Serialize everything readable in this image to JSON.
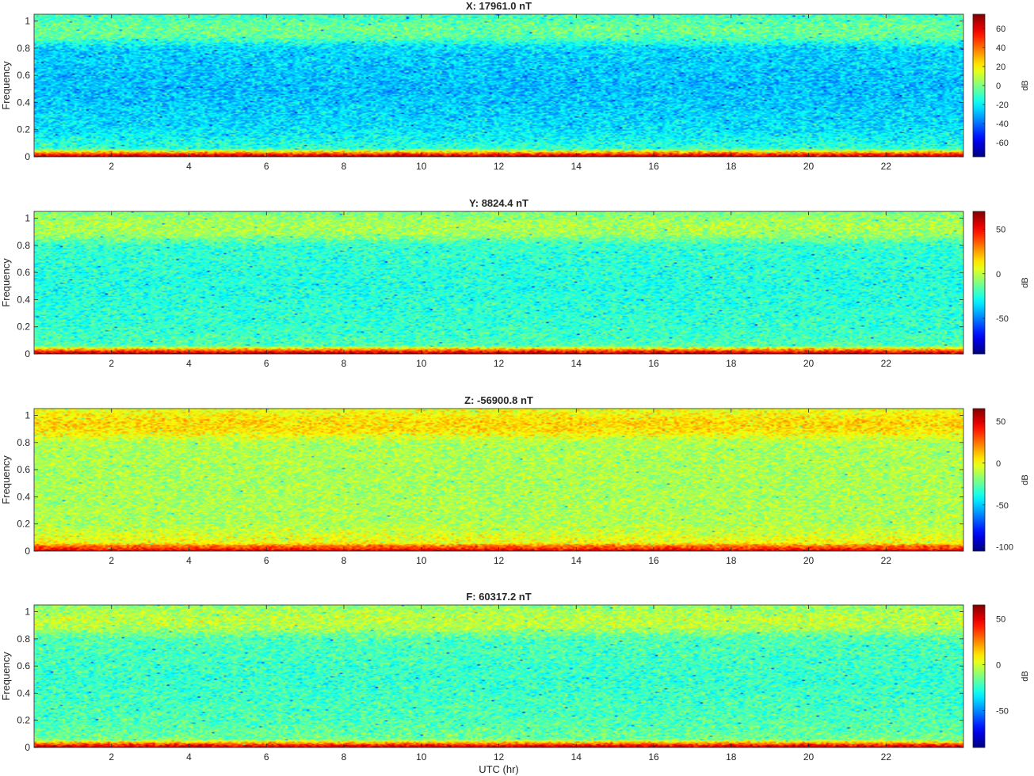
{
  "chart_data": [
    {
      "type": "heatmap",
      "title": "X: 17961.0 nT",
      "xlabel": "",
      "ylabel": "Frequency",
      "xlim": [
        0,
        24
      ],
      "ylim": [
        0,
        1.05
      ],
      "xticks": [
        2,
        4,
        6,
        8,
        10,
        12,
        14,
        16,
        18,
        20,
        22
      ],
      "yticks": [
        0,
        0.2,
        0.4,
        0.6,
        0.8,
        1
      ],
      "colorbar": {
        "label": "dB",
        "clim": [
          -75,
          75
        ],
        "ticks": [
          -60,
          -40,
          -20,
          0,
          20,
          40,
          60
        ]
      },
      "profile": [
        {
          "frequency": 0.0,
          "db": 72
        },
        {
          "frequency": 0.02,
          "db": 50
        },
        {
          "frequency": 0.04,
          "db": 20
        },
        {
          "frequency": 0.06,
          "db": -12
        },
        {
          "frequency": 0.2,
          "db": -22
        },
        {
          "frequency": 0.5,
          "db": -28
        },
        {
          "frequency": 0.8,
          "db": -24
        },
        {
          "frequency": 0.88,
          "db": -5
        },
        {
          "frequency": 0.95,
          "db": -2
        },
        {
          "frequency": 1.05,
          "db": -10
        }
      ]
    },
    {
      "type": "heatmap",
      "title": "Y: 8824.4 nT",
      "xlabel": "",
      "ylabel": "Frequency",
      "xlim": [
        0,
        24
      ],
      "ylim": [
        0,
        1.05
      ],
      "xticks": [
        2,
        4,
        6,
        8,
        10,
        12,
        14,
        16,
        18,
        20,
        22
      ],
      "yticks": [
        0,
        0.2,
        0.4,
        0.6,
        0.8,
        1
      ],
      "colorbar": {
        "label": "dB",
        "clim": [
          -90,
          70
        ],
        "ticks": [
          -50,
          0,
          50
        ]
      },
      "profile": [
        {
          "frequency": 0.0,
          "db": 65
        },
        {
          "frequency": 0.02,
          "db": 45
        },
        {
          "frequency": 0.04,
          "db": 15
        },
        {
          "frequency": 0.06,
          "db": -18
        },
        {
          "frequency": 0.2,
          "db": -22
        },
        {
          "frequency": 0.5,
          "db": -25
        },
        {
          "frequency": 0.8,
          "db": -22
        },
        {
          "frequency": 0.88,
          "db": -5
        },
        {
          "frequency": 0.95,
          "db": -2
        },
        {
          "frequency": 1.05,
          "db": -10
        }
      ]
    },
    {
      "type": "heatmap",
      "title": "Z: -56900.8 nT",
      "xlabel": "",
      "ylabel": "Frequency",
      "xlim": [
        0,
        24
      ],
      "ylim": [
        0,
        1.05
      ],
      "xticks": [
        2,
        4,
        6,
        8,
        10,
        12,
        14,
        16,
        18,
        20,
        22
      ],
      "yticks": [
        0,
        0.2,
        0.4,
        0.6,
        0.8,
        1
      ],
      "colorbar": {
        "label": "dB",
        "clim": [
          -105,
          65
        ],
        "ticks": [
          -100,
          -50,
          0,
          50
        ]
      },
      "profile": [
        {
          "frequency": 0.0,
          "db": 55
        },
        {
          "frequency": 0.02,
          "db": 35
        },
        {
          "frequency": 0.04,
          "db": 25
        },
        {
          "frequency": 0.06,
          "db": 0
        },
        {
          "frequency": 0.2,
          "db": -12
        },
        {
          "frequency": 0.5,
          "db": -13
        },
        {
          "frequency": 0.8,
          "db": -12
        },
        {
          "frequency": 0.88,
          "db": 5
        },
        {
          "frequency": 0.95,
          "db": 8
        },
        {
          "frequency": 1.05,
          "db": -3
        }
      ]
    },
    {
      "type": "heatmap",
      "title": "F: 60317.2 nT",
      "xlabel": "UTC (hr)",
      "ylabel": "Frequency",
      "xlim": [
        0,
        24
      ],
      "ylim": [
        0,
        1.05
      ],
      "xticks": [
        2,
        4,
        6,
        8,
        10,
        12,
        14,
        16,
        18,
        20,
        22
      ],
      "yticks": [
        0,
        0.2,
        0.4,
        0.6,
        0.8,
        1
      ],
      "colorbar": {
        "label": "dB",
        "clim": [
          -90,
          65
        ],
        "ticks": [
          -50,
          0,
          50
        ]
      },
      "profile": [
        {
          "frequency": 0.0,
          "db": 60
        },
        {
          "frequency": 0.02,
          "db": 40
        },
        {
          "frequency": 0.04,
          "db": 12
        },
        {
          "frequency": 0.06,
          "db": -15
        },
        {
          "frequency": 0.2,
          "db": -20
        },
        {
          "frequency": 0.5,
          "db": -24
        },
        {
          "frequency": 0.8,
          "db": -20
        },
        {
          "frequency": 0.88,
          "db": -5
        },
        {
          "frequency": 0.95,
          "db": -2
        },
        {
          "frequency": 1.05,
          "db": -10
        }
      ]
    }
  ]
}
